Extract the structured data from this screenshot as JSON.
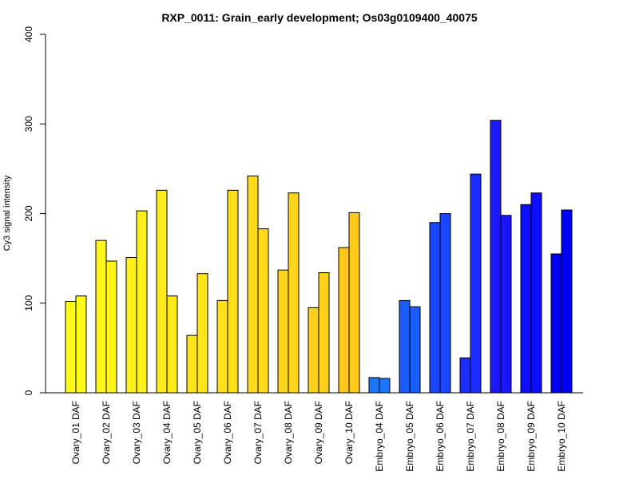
{
  "chart_data": {
    "type": "bar",
    "title": "RXP_0011: Grain_early development; Os03g0109400_40075",
    "ylabel": "Cy3 signal intensity",
    "xlabel": "",
    "ylim": [
      0,
      400
    ],
    "yticks": [
      0,
      100,
      200,
      300,
      400
    ],
    "grid": false,
    "categories": [
      "Ovary_01 DAF",
      "Ovary_02 DAF",
      "Ovary_03 DAF",
      "Ovary_04 DAF",
      "Ovary_05 DAF",
      "Ovary_06 DAF",
      "Ovary_07 DAF",
      "Ovary_08 DAF",
      "Ovary_09 DAF",
      "Ovary_10 DAF",
      "Embryo_04 DAF",
      "Embryo_05 DAF",
      "Embryo_06 DAF",
      "Embryo_07 DAF",
      "Embryo_08 DAF",
      "Embryo_09 DAF",
      "Embryo_10 DAF"
    ],
    "values": [
      [
        102,
        108
      ],
      [
        170,
        147
      ],
      [
        151,
        203
      ],
      [
        226,
        108
      ],
      [
        64,
        133
      ],
      [
        103,
        226
      ],
      [
        242,
        183
      ],
      [
        137,
        223
      ],
      [
        95,
        134
      ],
      [
        162,
        201
      ],
      [
        17,
        16
      ],
      [
        103,
        96
      ],
      [
        190,
        200
      ],
      [
        39,
        244
      ],
      [
        304,
        198
      ],
      [
        210,
        223
      ],
      [
        155,
        204
      ]
    ],
    "colors": [
      "#FFFA1A",
      "#FFF51A",
      "#FFEF1A",
      "#FFEA1A",
      "#FFE41A",
      "#FFDF1A",
      "#FFDA1A",
      "#FFD41A",
      "#FFCF1A",
      "#FFC91A",
      "#1A75FF",
      "#1A5DFF",
      "#1A46FF",
      "#1A2EFF",
      "#1A17FF",
      "#0D0DFF",
      "#0000F5"
    ]
  }
}
